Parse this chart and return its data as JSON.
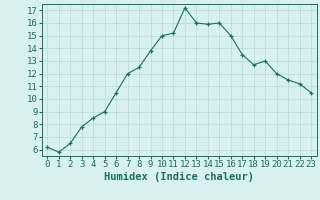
{
  "x": [
    0,
    1,
    2,
    3,
    4,
    5,
    6,
    7,
    8,
    9,
    10,
    11,
    12,
    13,
    14,
    15,
    16,
    17,
    18,
    19,
    20,
    21,
    22,
    23
  ],
  "y": [
    6.2,
    5.8,
    6.5,
    7.8,
    8.5,
    9.0,
    10.5,
    12.0,
    12.5,
    13.8,
    15.0,
    15.2,
    17.2,
    16.0,
    15.9,
    16.0,
    15.0,
    13.5,
    12.7,
    13.0,
    12.0,
    11.5,
    11.2,
    10.5
  ],
  "xlabel": "Humidex (Indice chaleur)",
  "ylim": [
    5.5,
    17.5
  ],
  "xlim": [
    -0.5,
    23.5
  ],
  "yticks": [
    6,
    7,
    8,
    9,
    10,
    11,
    12,
    13,
    14,
    15,
    16,
    17
  ],
  "xticks": [
    0,
    1,
    2,
    3,
    4,
    5,
    6,
    7,
    8,
    9,
    10,
    11,
    12,
    13,
    14,
    15,
    16,
    17,
    18,
    19,
    20,
    21,
    22,
    23
  ],
  "line_color": "#1a7060",
  "marker_color": "#1a7060",
  "bg_color": "#d8f0f0",
  "grid_color": "#b8d8d8",
  "xlabel_fontsize": 7.5,
  "tick_fontsize": 6.5
}
